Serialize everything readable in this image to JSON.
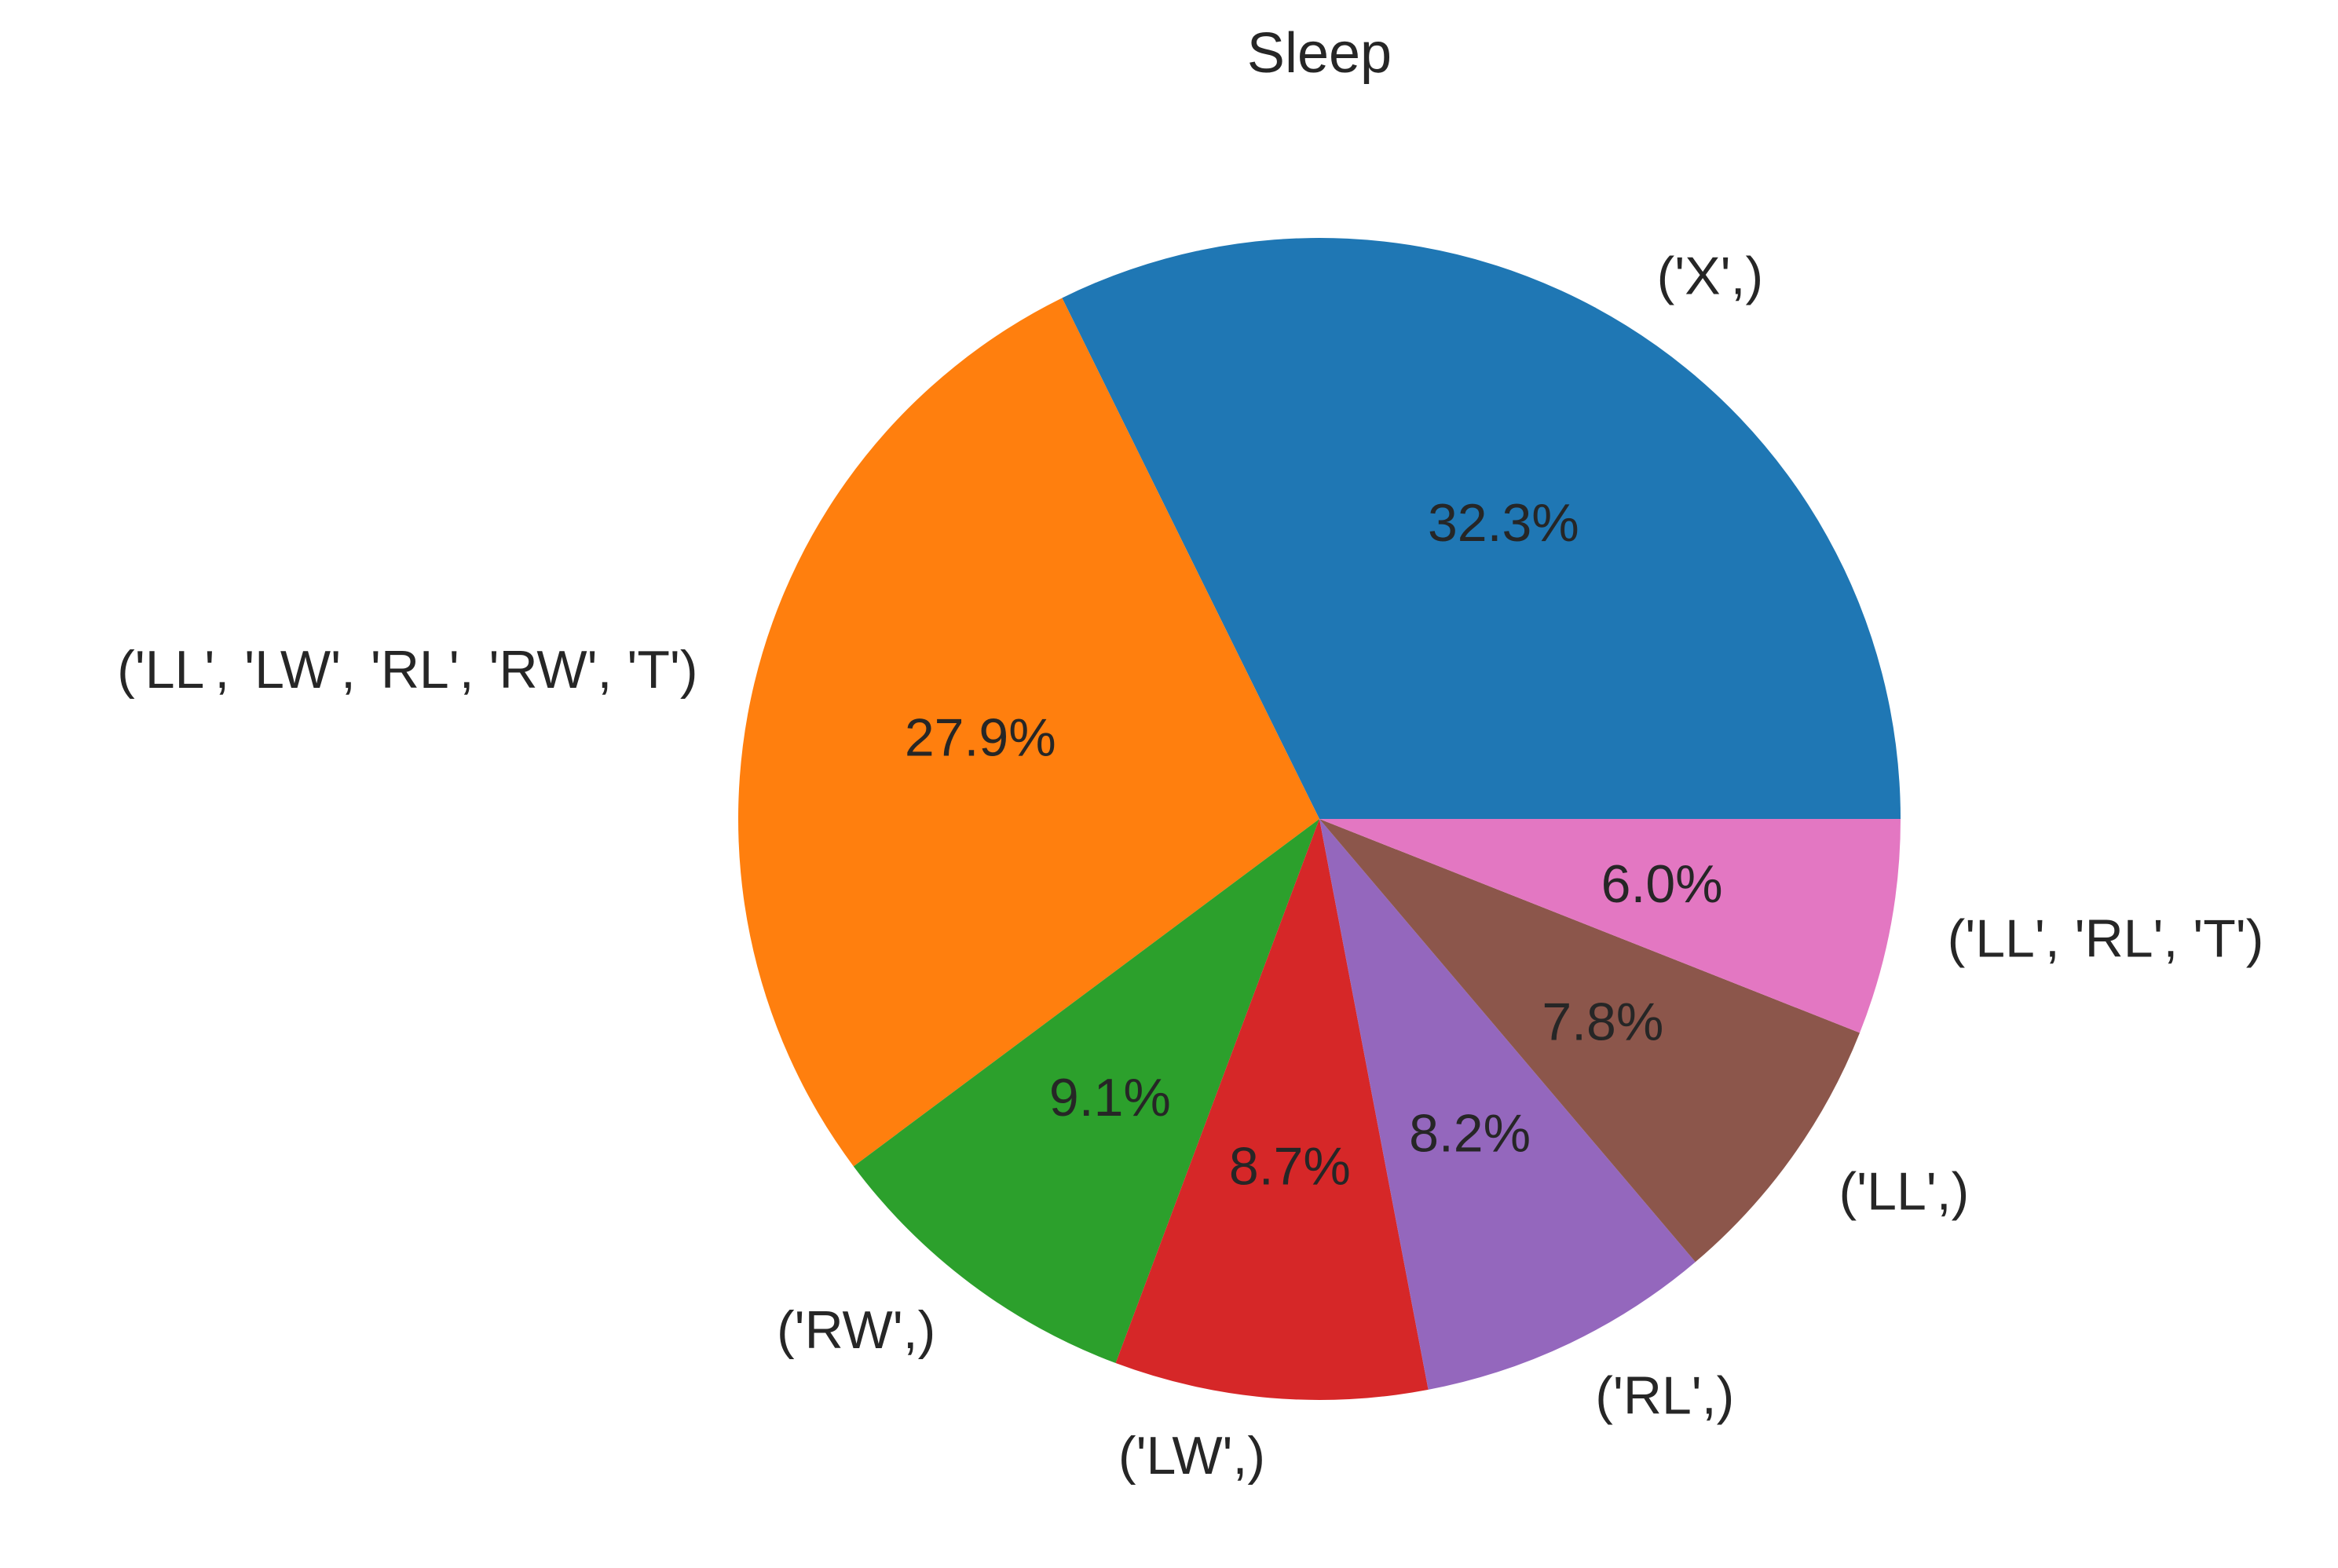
{
  "chart_data": {
    "type": "pie",
    "title": "Sleep",
    "categories": [
      "('X',)",
      "('LL', 'LW', 'RL', 'RW', 'T')",
      "('RW',)",
      "('LW',)",
      "('RL',)",
      "('LL',)",
      "('LL', 'RL', 'T')"
    ],
    "values": [
      32.3,
      27.9,
      9.1,
      8.7,
      8.2,
      7.8,
      6.0
    ],
    "value_labels": [
      "32.3%",
      "27.9%",
      "9.1%",
      "8.7%",
      "8.2%",
      "7.8%",
      "6.0%"
    ],
    "colors": [
      "#1f77b4",
      "#ff7f0e",
      "#2ca02c",
      "#d62728",
      "#9467bd",
      "#8c564b",
      "#e377c2"
    ],
    "start_angle": "3 o'clock",
    "direction": "counterclockwise"
  }
}
